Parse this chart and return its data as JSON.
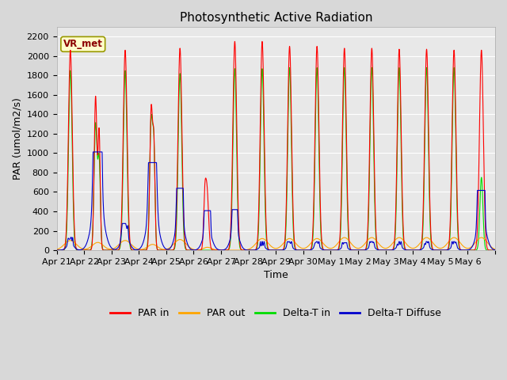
{
  "title": "Photosynthetic Active Radiation",
  "xlabel": "Time",
  "ylabel": "PAR (umol/m2/s)",
  "ylim": [
    0,
    2300
  ],
  "yticks": [
    0,
    200,
    400,
    600,
    800,
    1000,
    1200,
    1400,
    1600,
    1800,
    2000,
    2200
  ],
  "legend_labels": [
    "PAR in",
    "PAR out",
    "Delta-T in",
    "Delta-T Diffuse"
  ],
  "legend_colors": [
    "#ff0000",
    "#ffa500",
    "#00dd00",
    "#0000cc"
  ],
  "site_label": "VR_met",
  "background_color": "#e8e8e8",
  "grid_color": "#ffffff",
  "title_fontsize": 11,
  "label_fontsize": 9,
  "tick_fontsize": 8,
  "days": [
    "Apr 21",
    "Apr 22",
    "Apr 23",
    "Apr 24",
    "Apr 25",
    "Apr 26",
    "Apr 27",
    "Apr 28",
    "Apr 29",
    "Apr 30",
    "May 1",
    "May 2",
    "May 3",
    "May 4",
    "May 5",
    "May 6"
  ],
  "n_days": 16
}
